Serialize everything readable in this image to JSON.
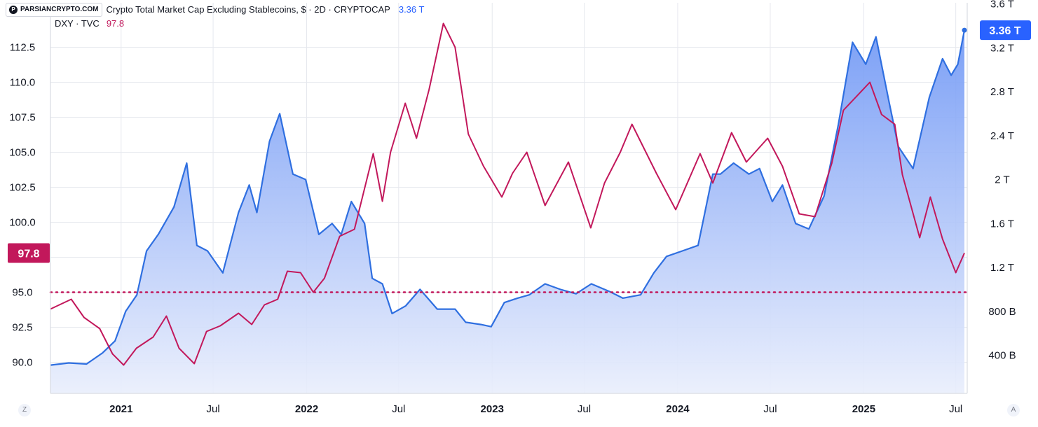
{
  "header": {
    "watermark_label": "PARSIANCRYPTO.COM",
    "series_main_title": "Crypto Total Market Cap Excluding Stablecoins, $ · 2D · CRYPTOCAP",
    "series_main_value": "3.36 T",
    "series_dxy_title": "DXY · TVC",
    "series_dxy_value": "97.8"
  },
  "badges": {
    "left_value": "97.8",
    "right_value": "3.36 T"
  },
  "corner_buttons": {
    "left": "Z",
    "right": "A"
  },
  "colors": {
    "cap_line": "#2f6fe0",
    "cap_fill_top": "#6e96f5",
    "cap_fill_bottom": "#e9eefc",
    "dxy_line": "#c2185b",
    "level_line": "#c2185b",
    "grid": "#e6e8ee",
    "axis_text": "#131722"
  },
  "chart_data": {
    "type": "line",
    "x_ticks": [
      "2021",
      "Jul",
      "2022",
      "Jul",
      "2023",
      "Jul",
      "2024",
      "Jul",
      "2025",
      "Jul"
    ],
    "x_range": [
      "2020-08-15",
      "2025-07-18"
    ],
    "left_axis": {
      "ticks": [
        "90.0",
        "92.5",
        "95.0",
        "97.5",
        "100.0",
        "102.5",
        "105.0",
        "107.5",
        "110.0",
        "112.5"
      ],
      "ylim": [
        88.5,
        115.0
      ]
    },
    "right_axis": {
      "ticks": [
        "400 B",
        "800 B",
        "1.2 T",
        "1.6 T",
        "2 T",
        "2.4 T",
        "2.8 T",
        "3.2 T",
        "3.6 T"
      ],
      "ylim_trillions": [
        0.0,
        3.6
      ]
    },
    "horizontal_level": {
      "value": 95.0,
      "axis": "left",
      "style": "dotted"
    },
    "series": [
      {
        "name": "Crypto Total Market Cap Excluding Stablecoins",
        "axis": "right",
        "unit": "trillion USD",
        "points": [
          [
            "2020-08-15",
            0.31
          ],
          [
            "2020-09-20",
            0.33
          ],
          [
            "2020-10-25",
            0.32
          ],
          [
            "2020-11-25",
            0.42
          ],
          [
            "2020-12-20",
            0.53
          ],
          [
            "2021-01-10",
            0.8
          ],
          [
            "2021-02-01",
            0.95
          ],
          [
            "2021-02-20",
            1.35
          ],
          [
            "2021-03-15",
            1.5
          ],
          [
            "2021-04-15",
            1.75
          ],
          [
            "2021-05-10",
            2.15
          ],
          [
            "2021-05-30",
            1.4
          ],
          [
            "2021-06-20",
            1.35
          ],
          [
            "2021-07-20",
            1.15
          ],
          [
            "2021-08-20",
            1.7
          ],
          [
            "2021-09-10",
            1.95
          ],
          [
            "2021-09-25",
            1.7
          ],
          [
            "2021-10-20",
            2.35
          ],
          [
            "2021-11-09",
            2.6
          ],
          [
            "2021-12-05",
            2.05
          ],
          [
            "2021-12-30",
            2.0
          ],
          [
            "2022-01-25",
            1.5
          ],
          [
            "2022-02-20",
            1.6
          ],
          [
            "2022-03-10",
            1.5
          ],
          [
            "2022-03-30",
            1.8
          ],
          [
            "2022-04-25",
            1.6
          ],
          [
            "2022-05-10",
            1.1
          ],
          [
            "2022-05-30",
            1.05
          ],
          [
            "2022-06-18",
            0.78
          ],
          [
            "2022-07-15",
            0.85
          ],
          [
            "2022-08-12",
            1.0
          ],
          [
            "2022-09-15",
            0.82
          ],
          [
            "2022-10-20",
            0.82
          ],
          [
            "2022-11-10",
            0.7
          ],
          [
            "2022-12-10",
            0.68
          ],
          [
            "2022-12-30",
            0.66
          ],
          [
            "2023-01-25",
            0.88
          ],
          [
            "2023-02-20",
            0.92
          ],
          [
            "2023-03-15",
            0.95
          ],
          [
            "2023-04-15",
            1.05
          ],
          [
            "2023-05-15",
            1.0
          ],
          [
            "2023-06-15",
            0.96
          ],
          [
            "2023-07-15",
            1.05
          ],
          [
            "2023-08-20",
            0.98
          ],
          [
            "2023-09-15",
            0.92
          ],
          [
            "2023-10-20",
            0.95
          ],
          [
            "2023-11-15",
            1.15
          ],
          [
            "2023-12-10",
            1.3
          ],
          [
            "2024-01-10",
            1.35
          ],
          [
            "2024-02-10",
            1.4
          ],
          [
            "2024-03-10",
            2.05
          ],
          [
            "2024-03-25",
            2.05
          ],
          [
            "2024-04-20",
            2.15
          ],
          [
            "2024-05-20",
            2.05
          ],
          [
            "2024-06-10",
            2.1
          ],
          [
            "2024-07-05",
            1.8
          ],
          [
            "2024-07-25",
            1.95
          ],
          [
            "2024-08-20",
            1.6
          ],
          [
            "2024-09-15",
            1.55
          ],
          [
            "2024-10-15",
            1.85
          ],
          [
            "2024-11-12",
            2.5
          ],
          [
            "2024-12-10",
            3.25
          ],
          [
            "2025-01-05",
            3.05
          ],
          [
            "2025-01-25",
            3.3
          ],
          [
            "2025-02-20",
            2.7
          ],
          [
            "2025-03-10",
            2.3
          ],
          [
            "2025-04-08",
            2.1
          ],
          [
            "2025-05-10",
            2.75
          ],
          [
            "2025-06-05",
            3.1
          ],
          [
            "2025-06-22",
            2.95
          ],
          [
            "2025-07-05",
            3.05
          ],
          [
            "2025-07-18",
            3.36
          ]
        ]
      },
      {
        "name": "DXY",
        "axis": "left",
        "unit": "index",
        "points": [
          [
            "2020-08-15",
            93.8
          ],
          [
            "2020-09-25",
            94.5
          ],
          [
            "2020-10-20",
            93.2
          ],
          [
            "2020-11-20",
            92.4
          ],
          [
            "2020-12-15",
            90.6
          ],
          [
            "2021-01-06",
            89.8
          ],
          [
            "2021-01-31",
            91.0
          ],
          [
            "2021-03-05",
            91.8
          ],
          [
            "2021-03-31",
            93.3
          ],
          [
            "2021-04-25",
            91.0
          ],
          [
            "2021-05-25",
            89.9
          ],
          [
            "2021-06-18",
            92.2
          ],
          [
            "2021-07-15",
            92.6
          ],
          [
            "2021-08-20",
            93.5
          ],
          [
            "2021-09-15",
            92.7
          ],
          [
            "2021-10-10",
            94.1
          ],
          [
            "2021-11-05",
            94.5
          ],
          [
            "2021-11-24",
            96.5
          ],
          [
            "2021-12-20",
            96.4
          ],
          [
            "2022-01-14",
            95.0
          ],
          [
            "2022-02-05",
            96.0
          ],
          [
            "2022-03-07",
            99.0
          ],
          [
            "2022-04-05",
            99.5
          ],
          [
            "2022-05-12",
            104.9
          ],
          [
            "2022-05-30",
            101.5
          ],
          [
            "2022-06-15",
            105.0
          ],
          [
            "2022-07-14",
            108.5
          ],
          [
            "2022-08-05",
            106.0
          ],
          [
            "2022-08-30",
            109.5
          ],
          [
            "2022-09-27",
            114.2
          ],
          [
            "2022-10-20",
            112.5
          ],
          [
            "2022-11-15",
            106.3
          ],
          [
            "2022-12-15",
            104.0
          ],
          [
            "2023-01-20",
            101.8
          ],
          [
            "2023-02-10",
            103.5
          ],
          [
            "2023-03-10",
            105.0
          ],
          [
            "2023-04-15",
            101.2
          ],
          [
            "2023-05-31",
            104.3
          ],
          [
            "2023-07-14",
            99.6
          ],
          [
            "2023-08-10",
            102.8
          ],
          [
            "2023-09-10",
            105.0
          ],
          [
            "2023-10-03",
            107.0
          ],
          [
            "2023-11-20",
            103.5
          ],
          [
            "2023-12-28",
            100.9
          ],
          [
            "2024-02-14",
            104.9
          ],
          [
            "2024-03-10",
            102.8
          ],
          [
            "2024-04-16",
            106.4
          ],
          [
            "2024-05-15",
            104.3
          ],
          [
            "2024-06-26",
            106.0
          ],
          [
            "2024-07-25",
            104.0
          ],
          [
            "2024-08-27",
            100.6
          ],
          [
            "2024-09-27",
            100.4
          ],
          [
            "2024-10-30",
            104.2
          ],
          [
            "2024-11-22",
            108.0
          ],
          [
            "2025-01-13",
            110.0
          ],
          [
            "2025-02-05",
            107.7
          ],
          [
            "2025-03-03",
            107.0
          ],
          [
            "2025-03-18",
            103.4
          ],
          [
            "2025-04-21",
            98.9
          ],
          [
            "2025-05-12",
            101.8
          ],
          [
            "2025-06-05",
            98.8
          ],
          [
            "2025-07-01",
            96.4
          ],
          [
            "2025-07-18",
            97.8
          ]
        ]
      }
    ]
  }
}
